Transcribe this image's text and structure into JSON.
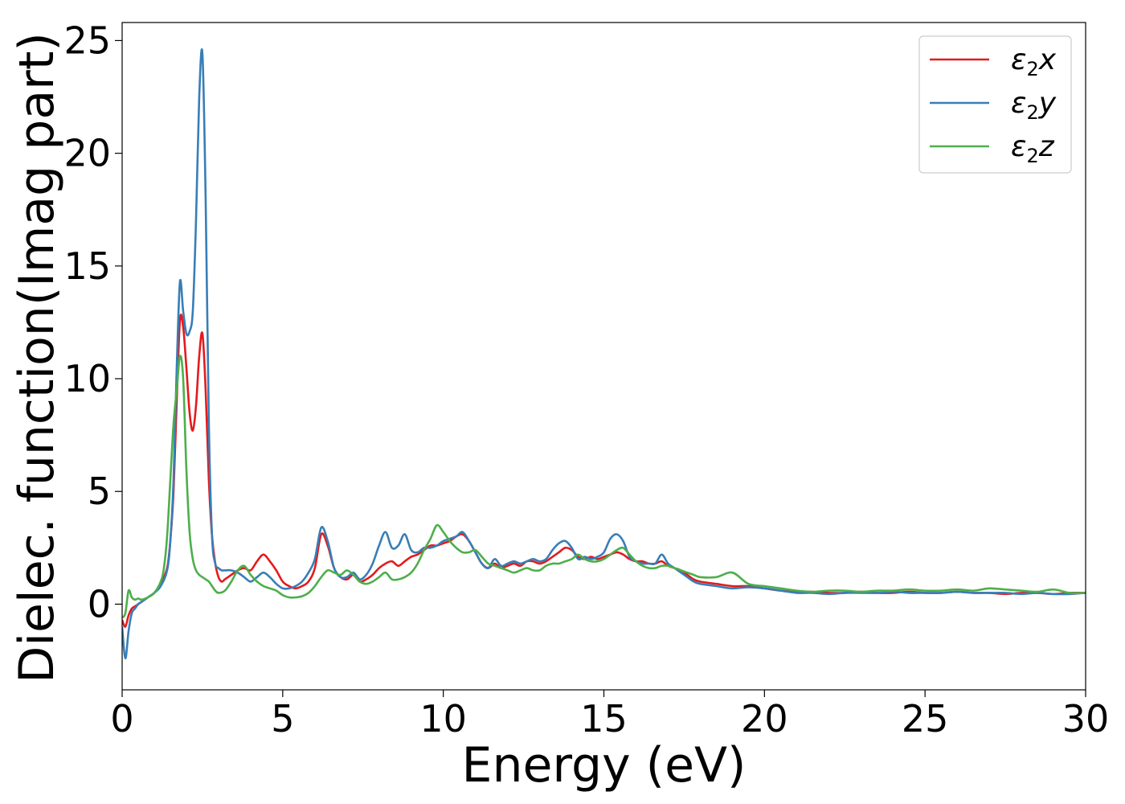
{
  "chart_data": {
    "type": "line",
    "xlabel": "Energy (eV)",
    "ylabel": "Dielec. function(Imag part)",
    "xlim": [
      0,
      30
    ],
    "ylim": [
      -3.8,
      25.8
    ],
    "xticks": [
      0,
      5,
      10,
      15,
      20,
      25,
      30
    ],
    "yticks": [
      0,
      5,
      10,
      15,
      20,
      25
    ],
    "grid": false,
    "legend_position": "top-right",
    "series": [
      {
        "name": "ε₂x",
        "legend_main": "ε",
        "legend_sub": "2",
        "legend_var": "x",
        "color": "#e41a1c",
        "x": [
          0,
          0.1,
          0.2,
          0.3,
          0.4,
          0.5,
          0.6,
          0.8,
          1.0,
          1.2,
          1.4,
          1.5,
          1.6,
          1.7,
          1.8,
          1.9,
          2.0,
          2.1,
          2.2,
          2.3,
          2.4,
          2.5,
          2.6,
          2.7,
          2.8,
          2.9,
          3.0,
          3.1,
          3.2,
          3.4,
          3.6,
          3.8,
          4.0,
          4.2,
          4.4,
          4.6,
          4.8,
          5.0,
          5.2,
          5.4,
          5.6,
          5.8,
          6.0,
          6.2,
          6.4,
          6.6,
          6.8,
          7.0,
          7.2,
          7.4,
          7.6,
          7.8,
          8.0,
          8.2,
          8.4,
          8.6,
          8.8,
          9.0,
          9.2,
          9.4,
          9.6,
          9.8,
          10.0,
          10.2,
          10.4,
          10.6,
          10.8,
          11.0,
          11.2,
          11.4,
          11.6,
          11.8,
          12.0,
          12.2,
          12.4,
          12.6,
          12.8,
          13.0,
          13.2,
          13.4,
          13.6,
          13.8,
          14.0,
          14.2,
          14.4,
          14.6,
          14.8,
          15.0,
          15.2,
          15.4,
          15.6,
          15.8,
          16.0,
          16.2,
          16.4,
          16.6,
          16.8,
          17.0,
          17.2,
          17.4,
          17.6,
          17.8,
          18.0,
          18.5,
          19.0,
          19.5,
          20.0,
          20.5,
          21.0,
          21.5,
          22.0,
          22.5,
          23.0,
          23.5,
          24.0,
          24.5,
          25.0,
          25.5,
          26.0,
          26.5,
          27.0,
          27.5,
          28.0,
          28.5,
          29.0,
          29.5,
          30.0
        ],
        "y": [
          -0.7,
          -1.0,
          -0.5,
          -0.2,
          -0.1,
          0.0,
          0.1,
          0.3,
          0.5,
          0.9,
          1.6,
          2.8,
          5.0,
          9.0,
          12.6,
          12.3,
          10.5,
          8.5,
          7.7,
          8.8,
          11.0,
          12.0,
          9.5,
          5.5,
          3.0,
          1.8,
          1.2,
          1.0,
          1.1,
          1.3,
          1.5,
          1.6,
          1.5,
          1.9,
          2.2,
          1.9,
          1.5,
          1.0,
          0.8,
          0.7,
          0.8,
          1.0,
          1.6,
          3.1,
          2.6,
          1.6,
          1.2,
          1.1,
          1.3,
          1.0,
          1.1,
          1.3,
          1.6,
          1.8,
          1.9,
          1.7,
          1.9,
          2.1,
          2.2,
          2.4,
          2.6,
          2.6,
          2.7,
          2.8,
          3.0,
          3.1,
          2.8,
          2.3,
          1.8,
          1.6,
          1.8,
          1.6,
          1.7,
          1.8,
          1.7,
          1.9,
          1.9,
          1.8,
          1.9,
          2.1,
          2.3,
          2.5,
          2.4,
          2.1,
          2.0,
          2.1,
          2.0,
          2.1,
          2.2,
          2.3,
          2.2,
          2.0,
          1.9,
          1.9,
          1.8,
          1.8,
          1.9,
          1.7,
          1.6,
          1.5,
          1.3,
          1.1,
          1.0,
          0.9,
          0.8,
          0.8,
          0.7,
          0.6,
          0.55,
          0.55,
          0.5,
          0.5,
          0.55,
          0.5,
          0.5,
          0.55,
          0.5,
          0.5,
          0.55,
          0.5,
          0.5,
          0.45,
          0.5,
          0.5,
          0.45,
          0.5,
          0.5
        ]
      },
      {
        "name": "ε₂y",
        "legend_main": "ε",
        "legend_sub": "2",
        "legend_var": "y",
        "color": "#377eb8",
        "x": [
          0,
          0.1,
          0.2,
          0.3,
          0.4,
          0.5,
          0.6,
          0.8,
          1.0,
          1.2,
          1.4,
          1.5,
          1.6,
          1.7,
          1.8,
          1.9,
          2.0,
          2.1,
          2.2,
          2.3,
          2.4,
          2.5,
          2.6,
          2.7,
          2.8,
          2.9,
          3.0,
          3.1,
          3.2,
          3.4,
          3.6,
          3.8,
          4.0,
          4.2,
          4.4,
          4.6,
          4.8,
          5.0,
          5.2,
          5.4,
          5.6,
          5.8,
          6.0,
          6.2,
          6.4,
          6.6,
          6.8,
          7.0,
          7.2,
          7.4,
          7.6,
          7.8,
          8.0,
          8.2,
          8.4,
          8.6,
          8.8,
          9.0,
          9.2,
          9.4,
          9.6,
          9.8,
          10.0,
          10.2,
          10.4,
          10.6,
          10.8,
          11.0,
          11.2,
          11.4,
          11.6,
          11.8,
          12.0,
          12.2,
          12.4,
          12.6,
          12.8,
          13.0,
          13.2,
          13.4,
          13.6,
          13.8,
          14.0,
          14.2,
          14.4,
          14.6,
          14.8,
          15.0,
          15.2,
          15.4,
          15.6,
          15.8,
          16.0,
          16.2,
          16.4,
          16.6,
          16.8,
          17.0,
          17.2,
          17.4,
          17.6,
          17.8,
          18.0,
          18.5,
          19.0,
          19.5,
          20.0,
          20.5,
          21.0,
          21.5,
          22.0,
          22.5,
          23.0,
          23.5,
          24.0,
          24.5,
          25.0,
          25.5,
          26.0,
          26.5,
          27.0,
          27.5,
          28.0,
          28.5,
          29.0,
          29.5,
          30.0
        ],
        "y": [
          -1.0,
          -2.4,
          -1.2,
          -0.4,
          -0.2,
          0.0,
          0.1,
          0.3,
          0.5,
          0.8,
          1.5,
          2.8,
          5.5,
          10.5,
          14.3,
          13.0,
          12.0,
          12.1,
          13.0,
          17.0,
          22.5,
          24.4,
          18.0,
          8.0,
          3.0,
          1.8,
          1.6,
          1.5,
          1.5,
          1.5,
          1.4,
          1.2,
          1.0,
          1.2,
          1.4,
          1.2,
          0.9,
          0.7,
          0.7,
          0.8,
          1.0,
          1.4,
          2.0,
          3.4,
          2.8,
          1.6,
          1.2,
          1.2,
          1.4,
          1.1,
          1.3,
          1.8,
          2.6,
          3.2,
          2.5,
          2.6,
          3.1,
          2.4,
          2.3,
          2.5,
          2.5,
          2.6,
          2.8,
          2.9,
          3.0,
          3.2,
          2.8,
          2.3,
          1.8,
          1.6,
          2.0,
          1.7,
          1.8,
          1.9,
          1.8,
          1.9,
          2.0,
          1.9,
          2.0,
          2.4,
          2.7,
          2.8,
          2.5,
          2.0,
          2.1,
          2.0,
          2.1,
          2.3,
          2.9,
          3.1,
          2.8,
          2.1,
          1.9,
          1.8,
          1.8,
          1.8,
          2.2,
          1.8,
          1.6,
          1.4,
          1.2,
          1.0,
          0.9,
          0.8,
          0.7,
          0.75,
          0.7,
          0.6,
          0.5,
          0.5,
          0.45,
          0.5,
          0.5,
          0.5,
          0.55,
          0.5,
          0.5,
          0.5,
          0.55,
          0.5,
          0.5,
          0.5,
          0.45,
          0.5,
          0.45,
          0.45,
          0.5
        ]
      },
      {
        "name": "ε₂z",
        "legend_main": "ε",
        "legend_sub": "2",
        "legend_var": "z",
        "color": "#4daf4a",
        "x": [
          0,
          0.1,
          0.2,
          0.3,
          0.4,
          0.5,
          0.6,
          0.8,
          1.0,
          1.2,
          1.3,
          1.4,
          1.5,
          1.6,
          1.7,
          1.8,
          1.9,
          2.0,
          2.1,
          2.2,
          2.3,
          2.4,
          2.5,
          2.6,
          2.7,
          2.8,
          2.9,
          3.0,
          3.2,
          3.4,
          3.6,
          3.8,
          4.0,
          4.2,
          4.4,
          4.6,
          4.8,
          5.0,
          5.2,
          5.4,
          5.6,
          5.8,
          6.0,
          6.2,
          6.4,
          6.6,
          6.8,
          7.0,
          7.2,
          7.4,
          7.6,
          7.8,
          8.0,
          8.2,
          8.4,
          8.6,
          8.8,
          9.0,
          9.2,
          9.4,
          9.6,
          9.8,
          10.0,
          10.2,
          10.4,
          10.6,
          10.8,
          11.0,
          11.2,
          11.4,
          11.6,
          11.8,
          12.0,
          12.2,
          12.4,
          12.6,
          12.8,
          13.0,
          13.2,
          13.4,
          13.6,
          13.8,
          14.0,
          14.2,
          14.4,
          14.6,
          14.8,
          15.0,
          15.2,
          15.4,
          15.6,
          15.8,
          16.0,
          16.2,
          16.4,
          16.6,
          16.8,
          17.0,
          17.2,
          17.4,
          17.6,
          17.8,
          18.0,
          18.5,
          19.0,
          19.5,
          20.0,
          20.5,
          21.0,
          21.5,
          22.0,
          22.5,
          23.0,
          23.5,
          24.0,
          24.5,
          25.0,
          25.5,
          26.0,
          26.5,
          27.0,
          27.5,
          28.0,
          28.5,
          29.0,
          29.5,
          30.0
        ],
        "y": [
          -0.6,
          -0.4,
          0.6,
          0.3,
          0.2,
          0.25,
          0.2,
          0.3,
          0.5,
          1.0,
          1.6,
          3.0,
          5.5,
          8.0,
          9.5,
          11.0,
          10.0,
          6.0,
          3.2,
          2.0,
          1.5,
          1.3,
          1.2,
          1.1,
          1.0,
          0.8,
          0.6,
          0.5,
          0.6,
          1.0,
          1.5,
          1.7,
          1.3,
          1.0,
          0.8,
          0.7,
          0.6,
          0.4,
          0.3,
          0.3,
          0.35,
          0.5,
          0.8,
          1.2,
          1.5,
          1.4,
          1.3,
          1.5,
          1.3,
          1.0,
          0.9,
          1.0,
          1.2,
          1.4,
          1.1,
          1.1,
          1.2,
          1.4,
          1.8,
          2.4,
          2.9,
          3.5,
          3.2,
          2.8,
          2.5,
          2.3,
          2.3,
          2.4,
          2.1,
          1.8,
          1.7,
          1.6,
          1.5,
          1.4,
          1.5,
          1.6,
          1.5,
          1.5,
          1.7,
          1.8,
          1.8,
          1.9,
          2.0,
          2.2,
          2.0,
          1.9,
          1.9,
          2.0,
          2.2,
          2.4,
          2.5,
          2.2,
          1.9,
          1.7,
          1.6,
          1.6,
          1.7,
          1.7,
          1.6,
          1.5,
          1.4,
          1.3,
          1.2,
          1.2,
          1.4,
          0.9,
          0.8,
          0.7,
          0.6,
          0.55,
          0.6,
          0.6,
          0.55,
          0.6,
          0.6,
          0.65,
          0.6,
          0.6,
          0.65,
          0.6,
          0.7,
          0.65,
          0.6,
          0.55,
          0.65,
          0.5,
          0.5
        ]
      }
    ]
  }
}
